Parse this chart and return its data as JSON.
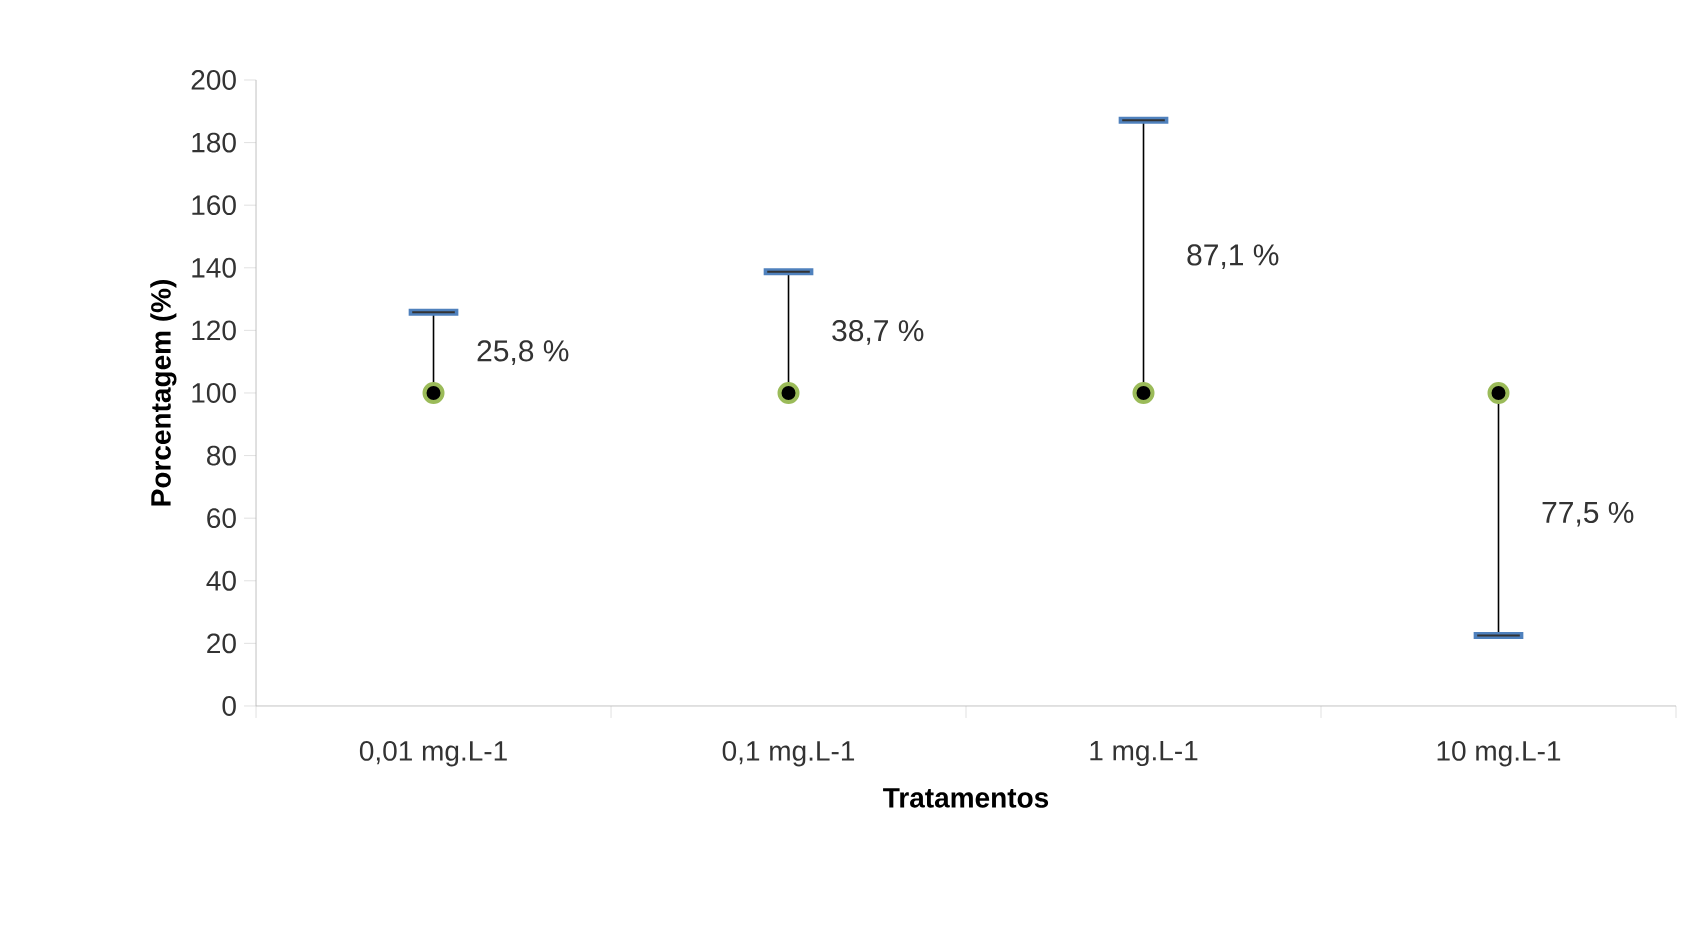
{
  "chart_data": {
    "type": "scatter",
    "xlabel": "Tratamentos",
    "ylabel": "Porcentagem (%)",
    "categories": [
      "0,01 mg.L-1",
      "0,1 mg.L-1",
      "1 mg.L-1",
      "10 mg.L-1"
    ],
    "values": [
      100,
      100,
      100,
      100
    ],
    "errors": [
      [
        100,
        125.8
      ],
      [
        100,
        138.7
      ],
      [
        100,
        187.1
      ],
      [
        22.5,
        100
      ]
    ],
    "color": "#000000",
    "ylim": [
      0,
      200
    ],
    "yticks": [
      0,
      20,
      40,
      60,
      80,
      100,
      120,
      140,
      160,
      180,
      200
    ],
    "marker": "circle",
    "annotations": [
      "25,8 %",
      "38,7 %",
      "87,1 %",
      "77,5 %"
    ]
  }
}
